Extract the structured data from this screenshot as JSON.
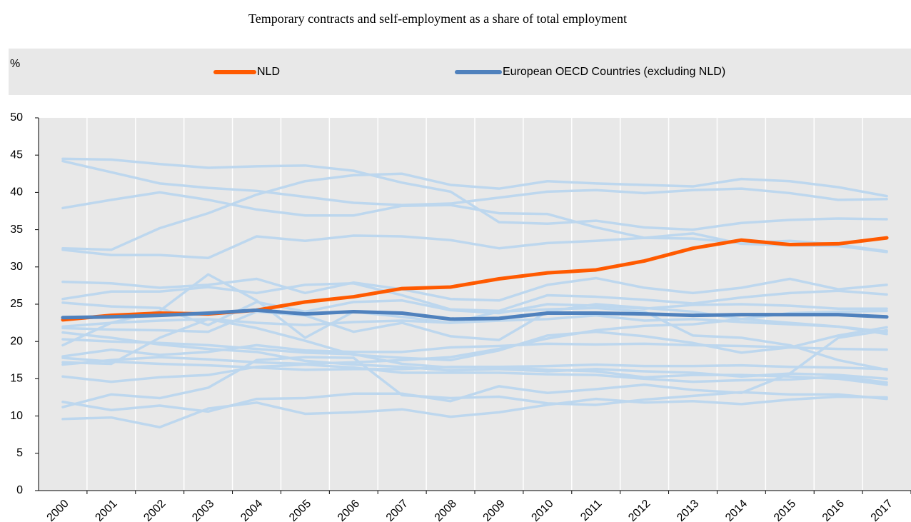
{
  "chart_data": {
    "type": "line",
    "title": "Temporary contracts and self-employment as a share of total employment",
    "y_label": "%",
    "legend": "top",
    "categories": [
      "2000",
      "2001",
      "2002",
      "2003",
      "2004",
      "2005",
      "2006",
      "2007",
      "2008",
      "2009",
      "2010",
      "2011",
      "2012",
      "2013",
      "2014",
      "2015",
      "2016",
      "2017"
    ],
    "ylim": [
      0,
      50
    ],
    "yticks": [
      0,
      5,
      10,
      15,
      20,
      25,
      30,
      35,
      40,
      45,
      50
    ],
    "series": [
      {
        "color": "#bdd7ee",
        "values": [
          44.5,
          44.4,
          43.8,
          43.3,
          43.5,
          43.6,
          42.9,
          41.3,
          40.1,
          36.0,
          35.8,
          36.2,
          35.3,
          35.0,
          35.9,
          36.3,
          36.5,
          36.4
        ]
      },
      {
        "color": "#bdd7ee",
        "values": [
          44.2,
          42.7,
          41.2,
          40.6,
          40.2,
          39.4,
          38.6,
          38.3,
          38.5,
          39.3,
          40.1,
          40.3,
          39.9,
          40.3,
          40.5,
          39.9,
          39.0,
          39.1
        ]
      },
      {
        "color": "#bdd7ee",
        "values": [
          37.9,
          39.0,
          40.0,
          39.0,
          37.7,
          36.9,
          36.9,
          38.2,
          38.3,
          37.2,
          37.1,
          35.3,
          33.9,
          34.5,
          33.1,
          32.9,
          32.8,
          32.0
        ]
      },
      {
        "color": "#bdd7ee",
        "values": [
          32.5,
          32.3,
          35.2,
          37.2,
          39.7,
          41.5,
          42.3,
          42.5,
          41.0,
          40.5,
          41.5,
          41.2,
          41.0,
          40.8,
          41.8,
          41.5,
          40.7,
          39.5
        ]
      },
      {
        "color": "#bdd7ee",
        "values": [
          32.3,
          31.6,
          31.6,
          31.2,
          34.1,
          33.5,
          34.2,
          34.1,
          33.6,
          32.5,
          33.2,
          33.5,
          33.9,
          33.8,
          33.2,
          33.5,
          33.0,
          32.1
        ]
      },
      {
        "color": "#bdd7ee",
        "values": [
          28.0,
          27.8,
          27.2,
          27.6,
          28.4,
          26.5,
          27.9,
          27.0,
          25.7,
          25.5,
          27.6,
          28.5,
          27.2,
          26.5,
          27.2,
          28.4,
          27.0,
          27.6
        ]
      },
      {
        "color": "#bdd7ee",
        "values": [
          25.7,
          26.7,
          26.7,
          27.3,
          26.5,
          27.6,
          27.8,
          26.2,
          24.3,
          24.1,
          26.2,
          26.0,
          25.6,
          25.1,
          25.9,
          26.5,
          26.8,
          26.3
        ]
      },
      {
        "color": "#bdd7ee",
        "values": [
          25.2,
          24.7,
          24.5,
          22.2,
          25.3,
          24.0,
          25.3,
          25.5,
          24.2,
          23.8,
          25.0,
          24.8,
          24.4,
          24.9,
          25.0,
          24.8,
          24.4,
          24.4
        ]
      },
      {
        "color": "#bdd7ee",
        "values": [
          19.5,
          22.5,
          24.1,
          29.0,
          25.5,
          20.5,
          24.0,
          23.3,
          22.5,
          24.0,
          24.3,
          24.5,
          24.0,
          20.8,
          20.5,
          19.5,
          17.5,
          16.2
        ]
      },
      {
        "color": "#bdd7ee",
        "values": [
          21.8,
          21.6,
          21.5,
          21.3,
          24.0,
          23.5,
          21.3,
          22.5,
          20.7,
          20.2,
          24.0,
          25.0,
          24.5,
          24.0,
          23.0,
          22.5,
          22.0,
          21.3
        ]
      },
      {
        "color": "#bdd7ee",
        "values": [
          17.2,
          17.0,
          20.5,
          23.0,
          21.8,
          20.1,
          18.2,
          17.8,
          17.5,
          18.8,
          20.8,
          21.3,
          20.7,
          19.8,
          18.5,
          19.2,
          20.8,
          21.9
        ]
      },
      {
        "color": "#bdd7ee",
        "values": [
          18.0,
          18.9,
          18.2,
          18.6,
          19.5,
          18.8,
          18.6,
          18.6,
          19.2,
          19.4,
          19.7,
          19.6,
          19.7,
          19.5,
          19.4,
          19.2,
          19.0,
          18.9
        ]
      },
      {
        "color": "#bdd7ee",
        "values": [
          16.9,
          17.5,
          17.9,
          17.6,
          17.2,
          17.0,
          17.2,
          17.5,
          17.9,
          19.0,
          20.4,
          21.5,
          22.1,
          22.3,
          23.0,
          23.8,
          24.0,
          24.1
        ]
      },
      {
        "color": "#bdd7ee",
        "values": [
          21.2,
          20.5,
          19.6,
          19.0,
          18.6,
          17.4,
          16.9,
          16.6,
          16.1,
          16.3,
          16.0,
          16.3,
          16.0,
          15.8,
          15.3,
          15.7,
          15.5,
          15.0
        ]
      },
      {
        "color": "#bdd7ee",
        "values": [
          17.8,
          17.3,
          17.0,
          16.8,
          16.5,
          16.2,
          16.3,
          16.3,
          16.6,
          16.6,
          16.7,
          16.9,
          16.7,
          16.7,
          16.8,
          16.6,
          16.5,
          16.3
        ]
      },
      {
        "color": "#bdd7ee",
        "values": [
          15.3,
          14.6,
          15.2,
          15.5,
          16.6,
          16.9,
          16.5,
          15.8,
          15.8,
          15.8,
          15.6,
          15.5,
          15.0,
          14.6,
          14.8,
          14.9,
          15.3,
          14.5
        ]
      },
      {
        "color": "#bdd7ee",
        "values": [
          11.9,
          10.8,
          11.4,
          10.6,
          12.3,
          12.4,
          13.0,
          13.0,
          12.0,
          14.0,
          13.1,
          13.6,
          14.2,
          13.5,
          13.1,
          15.7,
          20.5,
          21.5
        ]
      },
      {
        "color": "#bdd7ee",
        "values": [
          11.2,
          12.9,
          12.4,
          13.8,
          17.5,
          17.9,
          17.8,
          12.8,
          12.4,
          12.6,
          11.7,
          11.5,
          12.2,
          12.7,
          13.2,
          12.9,
          12.9,
          12.3
        ]
      },
      {
        "color": "#bdd7ee",
        "values": [
          9.6,
          9.8,
          8.5,
          11.0,
          11.8,
          10.3,
          10.5,
          10.9,
          9.9,
          10.5,
          11.5,
          12.3,
          11.8,
          12.0,
          11.6,
          12.2,
          12.6,
          12.5
        ]
      },
      {
        "color": "#bdd7ee",
        "values": [
          20.3,
          20.0,
          19.8,
          19.5,
          19.0,
          18.5,
          18.3,
          17.0,
          16.5,
          16.6,
          16.2,
          16.0,
          15.2,
          15.5,
          15.5,
          15.3,
          15.0,
          14.2
        ]
      },
      {
        "color": "#bdd7ee",
        "values": [
          22.0,
          22.5,
          22.8,
          23.0,
          22.5,
          22.2,
          22.6,
          22.8,
          22.5,
          22.8,
          23.0,
          23.5,
          22.8,
          23.0,
          22.6,
          22.3,
          22.0,
          21.0
        ]
      },
      {
        "name": "NLD",
        "color": "#ff5a00",
        "values": [
          22.9,
          23.5,
          23.8,
          23.7,
          24.2,
          25.3,
          26.0,
          27.1,
          27.3,
          28.4,
          29.2,
          29.6,
          30.8,
          32.5,
          33.6,
          33.0,
          33.1,
          33.9
        ]
      },
      {
        "name": "European OECD Countries (excluding NLD)",
        "color": "#4f81bd",
        "values": [
          23.2,
          23.3,
          23.5,
          23.8,
          24.2,
          23.7,
          24.0,
          23.8,
          23.0,
          23.1,
          23.8,
          23.8,
          23.7,
          23.5,
          23.6,
          23.6,
          23.6,
          23.3
        ]
      }
    ]
  }
}
